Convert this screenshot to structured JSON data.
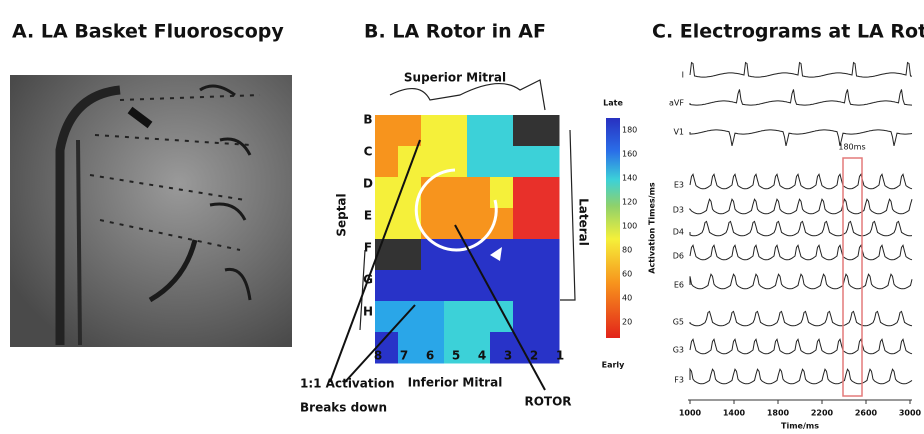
{
  "panels": [
    {
      "title": "A. LA Basket Fluoroscopy"
    },
    {
      "title": "B. LA Rotor in AF",
      "superior": "Superior Mitral",
      "inferior": "Inferior Mitral",
      "septal": "Septal",
      "lateral": "Lateral",
      "rows": [
        "B",
        "C",
        "D",
        "E",
        "F",
        "G",
        "H"
      ],
      "columns": [
        "8",
        "7",
        "6",
        "5",
        "4",
        "3",
        "2",
        "1"
      ],
      "colorbar": {
        "top": "Late",
        "bottom": "Early",
        "label": "Activation Times/ms",
        "ticks": [
          "180",
          "160",
          "140",
          "120",
          "100",
          "80",
          "60",
          "40",
          "20"
        ]
      },
      "annotation": [
        "1:1 Activation",
        "Breaks down"
      ],
      "rotor": "ROTOR"
    },
    {
      "title": "C. Electrograms at LA Rotor",
      "leads": [
        "I",
        "aVF",
        "V1",
        "E3",
        "D3",
        "D4",
        "D6",
        "E6",
        "G5",
        "G3",
        "F3"
      ],
      "marker": "180ms",
      "xticks": [
        "1000",
        "1400",
        "1800",
        "2200",
        "2600",
        "3000"
      ],
      "xlabel": "Time/ms"
    }
  ]
}
